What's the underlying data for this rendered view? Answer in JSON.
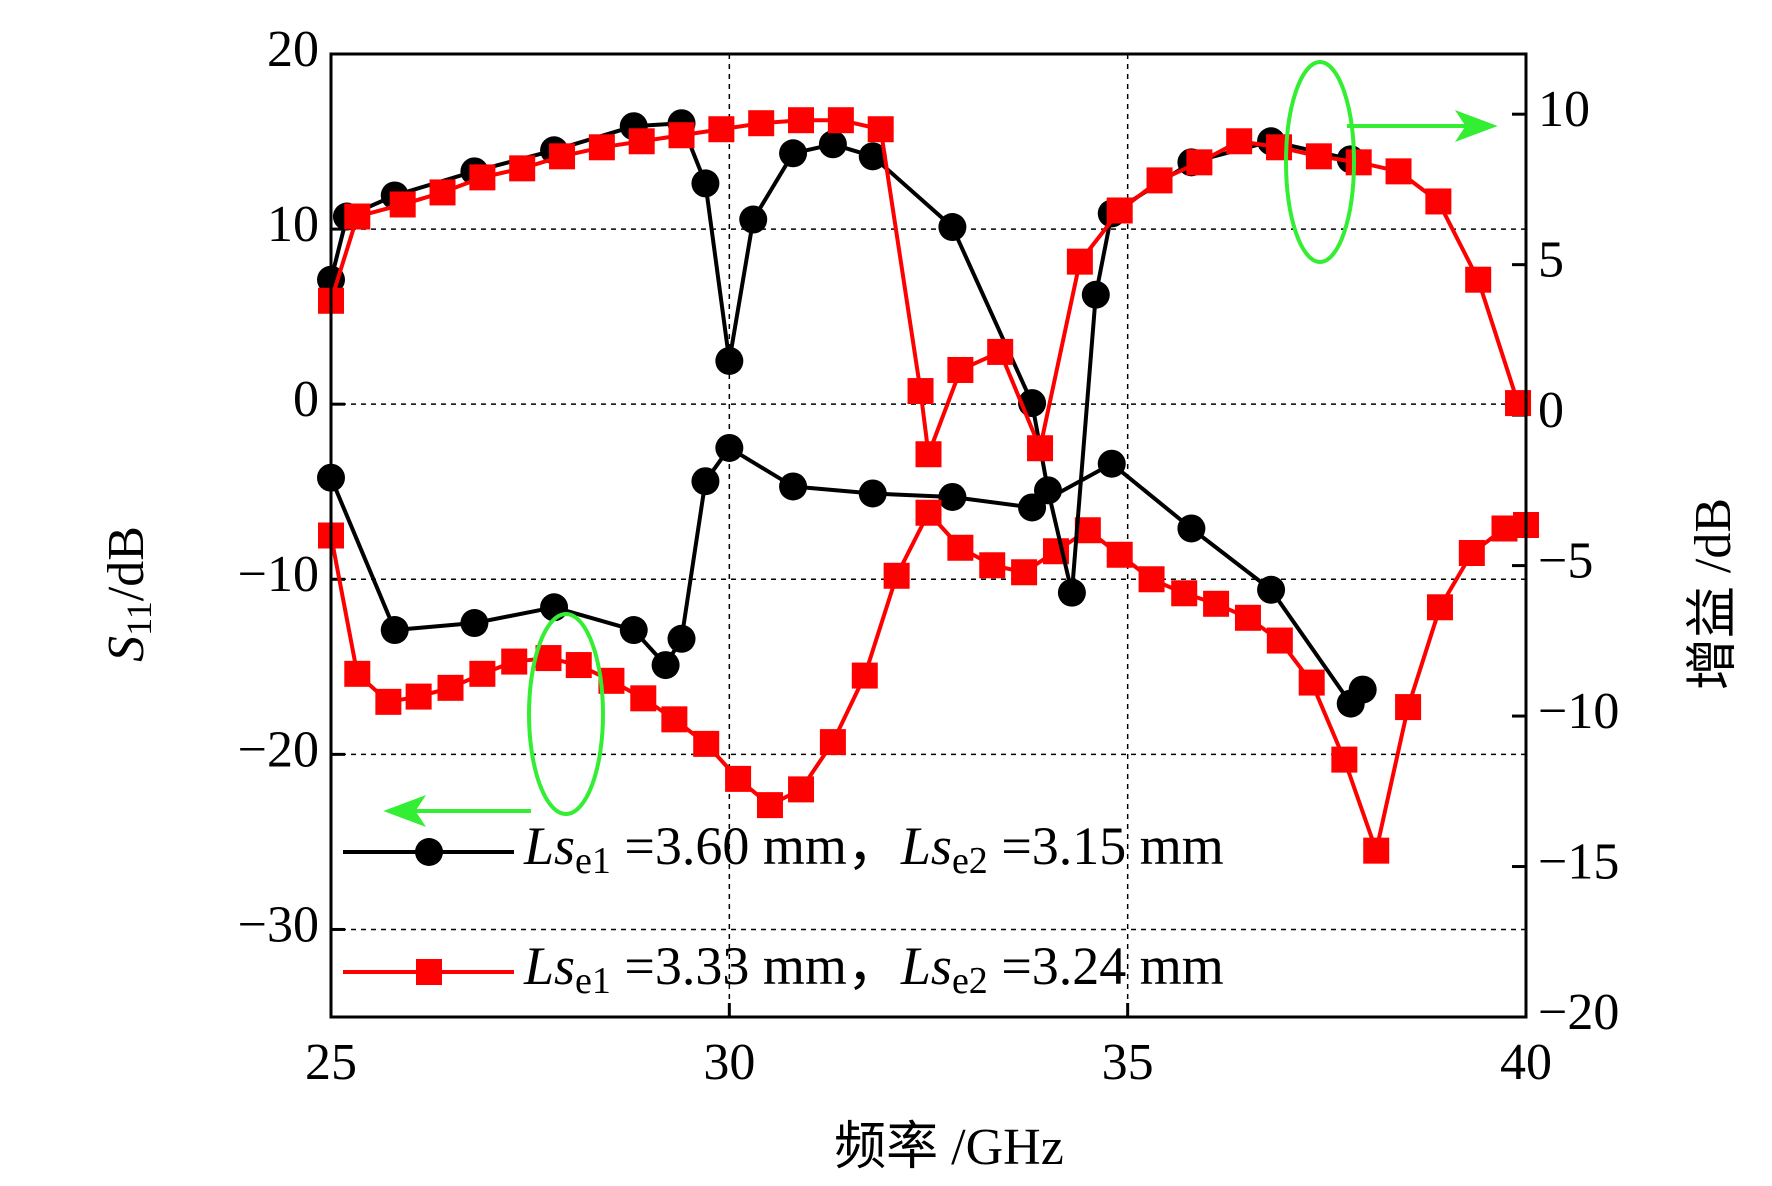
{
  "chart_data": {
    "type": "line",
    "x_label": "频率 /GHz",
    "y_label": [
      "S",
      "11",
      "/dB"
    ],
    "y2_label": "增益 /dB",
    "xlim": [
      25,
      40
    ],
    "xticks": [
      25,
      30,
      35,
      40
    ],
    "ylim": [
      -35,
      20
    ],
    "yticks": [
      {
        "value": -30,
        "label": "−30"
      },
      {
        "value": -20,
        "label": "−20"
      },
      {
        "value": -10,
        "label": "−10"
      },
      0,
      10,
      20
    ],
    "y2lim": [
      -20,
      12
    ],
    "y2ticks": [
      {
        "value": -20,
        "label": "−20"
      },
      {
        "value": -15,
        "label": "−15"
      },
      {
        "value": -10,
        "label": "−10"
      },
      {
        "value": -5,
        "label": "−5"
      },
      0,
      5,
      10
    ],
    "grid": true,
    "legend": "lower left",
    "series": [
      {
        "name": [
          "Ls",
          "e1",
          " =3.60 mm，",
          "Ls",
          "e2",
          " =3.15 mm"
        ],
        "color": "#000000",
        "marker": "circle",
        "axis": "y",
        "x": [
          25.0,
          25.8,
          26.8,
          27.8,
          28.8,
          29.2,
          29.4,
          29.7,
          30.0,
          30.8,
          31.8,
          32.8,
          33.8,
          34.8,
          35.8,
          36.8,
          37.8,
          37.95
        ],
        "values": [
          -4.2,
          -12.9,
          -12.5,
          -11.6,
          -12.9,
          -14.9,
          -13.4,
          -4.4,
          -2.5,
          -4.7,
          -5.1,
          -5.3,
          -5.9,
          -3.4,
          -7.1,
          -10.6,
          -17.1,
          -16.3
        ]
      },
      {
        "name": [
          "Ls",
          "e1",
          " =3.33 mm，",
          "Ls",
          "e2",
          " =3.24 mm"
        ],
        "color": "#ff0000",
        "marker": "square",
        "axis": "y",
        "x": [
          25.0,
          25.33,
          25.72,
          26.1,
          26.5,
          26.9,
          27.3,
          27.73,
          28.11,
          28.52,
          28.92,
          29.31,
          29.71,
          30.11,
          30.51,
          30.9,
          31.3,
          31.7,
          32.1,
          32.5,
          32.9,
          33.3,
          33.7,
          34.1,
          34.5,
          34.9,
          35.3,
          35.71,
          36.11,
          36.51,
          36.91,
          37.31,
          37.72,
          38.12,
          38.52,
          38.92,
          39.32,
          39.73,
          40.0
        ],
        "values": [
          -7.5,
          -15.4,
          -17.0,
          -16.7,
          -16.2,
          -15.4,
          -14.7,
          -14.5,
          -14.9,
          -15.8,
          -16.8,
          -18.0,
          -19.4,
          -21.4,
          -22.9,
          -22.0,
          -19.3,
          -15.5,
          -9.8,
          -6.2,
          -8.2,
          -9.2,
          -9.6,
          -8.4,
          -7.2,
          -8.6,
          -10.0,
          -10.8,
          -11.4,
          -12.2,
          -13.5,
          -15.9,
          -20.3,
          -25.5,
          -17.3,
          -11.6,
          -8.5,
          -7.1,
          -6.9
        ]
      },
      {
        "color": "#000000",
        "marker": "circle",
        "axis": "y2",
        "x": [
          25.0,
          25.2,
          25.8,
          26.8,
          27.8,
          28.8,
          29.4,
          29.7,
          30.0,
          30.3,
          30.8,
          31.3,
          31.8,
          32.8,
          33.8,
          34.0,
          34.3,
          34.6,
          34.8,
          35.8,
          36.8,
          37.8
        ],
        "values": [
          4.5,
          6.6,
          7.3,
          8.1,
          8.8,
          9.6,
          9.7,
          7.7,
          1.8,
          6.5,
          8.7,
          9.0,
          8.6,
          6.25,
          0.4,
          -2.5,
          -5.9,
          4.0,
          6.7,
          8.4,
          9.1,
          8.5
        ]
      },
      {
        "color": "#ff0000",
        "marker": "square",
        "axis": "y2",
        "x": [
          25.0,
          25.33,
          25.9,
          26.4,
          26.9,
          27.4,
          27.9,
          28.4,
          28.9,
          29.4,
          29.9,
          30.4,
          30.9,
          31.4,
          31.9,
          32.4,
          32.5,
          32.9,
          33.4,
          33.9,
          34.4,
          34.9,
          35.4,
          35.9,
          36.4,
          36.9,
          37.4,
          37.9,
          38.4,
          38.9,
          39.4,
          39.9
        ],
        "values": [
          3.8,
          6.6,
          7.0,
          7.4,
          7.9,
          8.2,
          8.6,
          8.9,
          9.1,
          9.3,
          9.5,
          9.7,
          9.8,
          9.8,
          9.5,
          0.8,
          -1.3,
          1.5,
          2.1,
          -1.1,
          5.1,
          6.8,
          7.8,
          8.4,
          9.1,
          8.9,
          8.6,
          8.4,
          8.1,
          7.1,
          4.5,
          0.4
        ]
      }
    ]
  }
}
